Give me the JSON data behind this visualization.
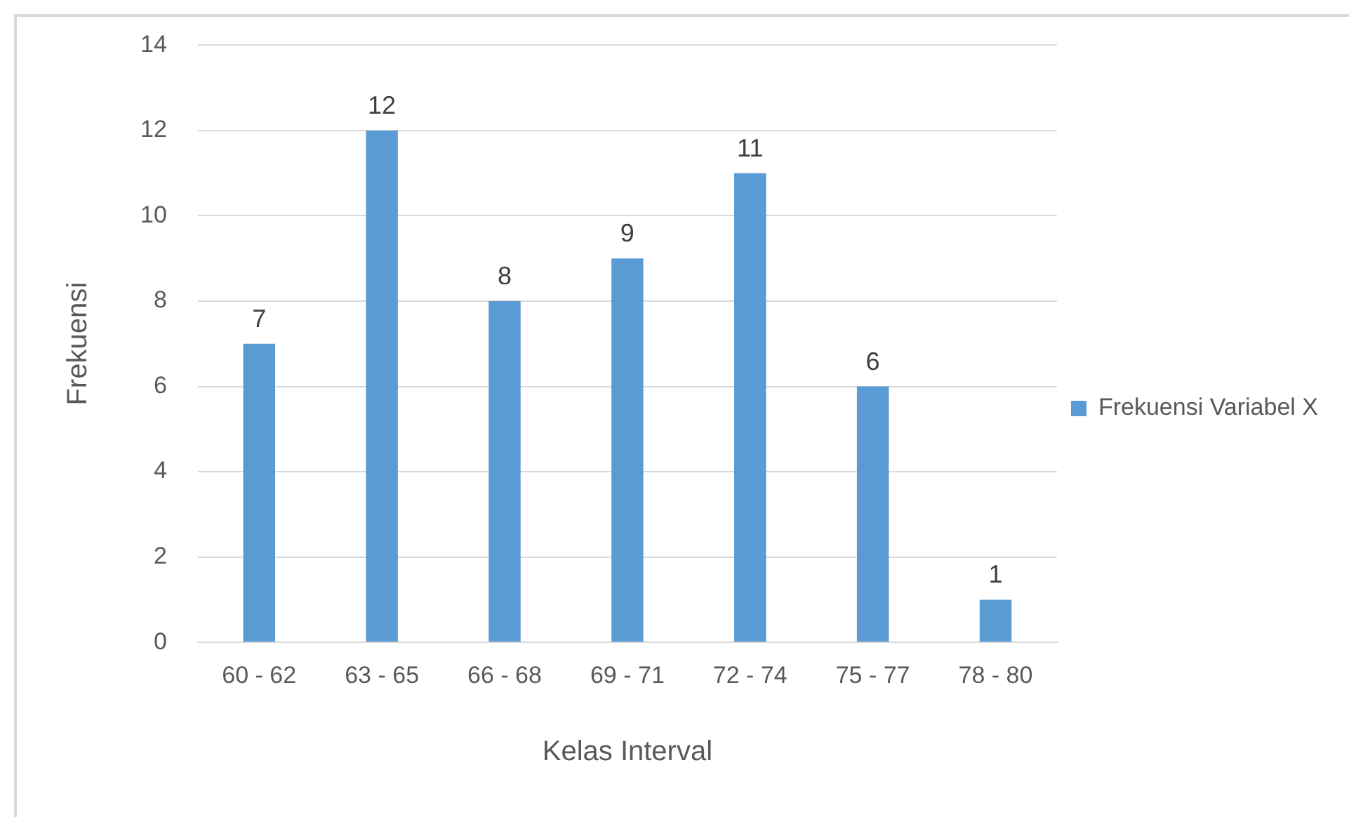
{
  "chart_data": {
    "type": "bar",
    "xlabel": "Kelas Interval",
    "ylabel": "Frekuensi",
    "categories": [
      "60 - 62",
      "63 - 65",
      "66 - 68",
      "69 - 71",
      "72 - 74",
      "75 - 77",
      "78 - 80"
    ],
    "series": [
      {
        "name": "Frekuensi Variabel X",
        "color": "#5b9bd5",
        "values": [
          7,
          12,
          8,
          9,
          11,
          6,
          1
        ]
      }
    ],
    "ylim": [
      0,
      14
    ],
    "yticks": [
      0,
      2,
      4,
      6,
      8,
      10,
      12,
      14
    ],
    "grid": "y",
    "legend": "right",
    "data_labels": true
  }
}
